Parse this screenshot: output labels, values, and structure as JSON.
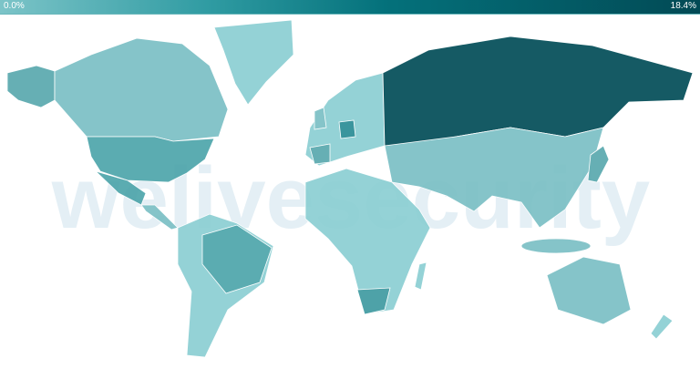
{
  "legend": {
    "min_label": "0.0%",
    "max_label": "18.4%",
    "min_color": "#7cc4c8",
    "max_color": "#024a55"
  },
  "watermark": "welivesecurity",
  "map": {
    "type": "choropleth",
    "metric_range": [
      0.0,
      18.4
    ],
    "unit": "%",
    "highlights": [
      {
        "region": "Russia",
        "level": "highest",
        "color": "#024d57"
      },
      {
        "region": "Germany",
        "level": "high",
        "color": "#2a8d95"
      },
      {
        "region": "United States",
        "level": "medium",
        "color": "#4ea5ab"
      },
      {
        "region": "Brazil",
        "level": "medium",
        "color": "#4ea5ab"
      },
      {
        "region": "Mexico",
        "level": "medium",
        "color": "#4ea5ab"
      },
      {
        "region": "South Africa",
        "level": "medium",
        "color": "#3f9ba1"
      }
    ],
    "base_color": "#8ccfd3"
  }
}
